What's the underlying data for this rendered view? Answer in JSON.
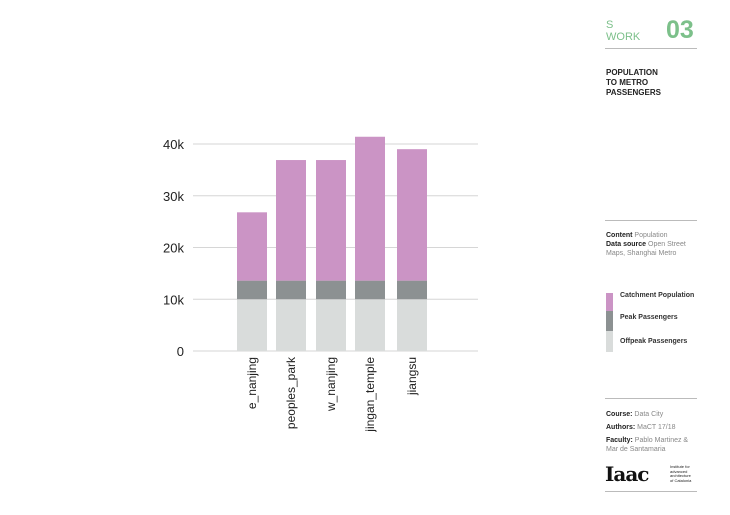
{
  "header": {
    "section_line1": "S",
    "section_line2": "WORK",
    "number": "03",
    "title_lines": [
      "POPULATION",
      "TO METRO",
      "PASSENGERS"
    ]
  },
  "info": {
    "content_label": "Content",
    "content_value": "Population",
    "source_label": "Data source",
    "source_value_1": "Open Street",
    "source_value_2": "Maps, Shanghai Metro"
  },
  "credits": {
    "course_label": "Course:",
    "course_value": "Data City",
    "authors_label": "Authors:",
    "authors_value": "MaCT 17/18",
    "faculty_label": "Faculty:",
    "faculty_value_1": "Pablo Martinez  &",
    "faculty_value_2": "Mar de Santamaria",
    "logo_text": "Iaac",
    "logo_caption": [
      "Institute for",
      "advanced",
      "architecture",
      "of Catalonia"
    ]
  },
  "colors": {
    "accent": "#7cc08a",
    "catchment": "#cb94c5",
    "peak": "#8c9192",
    "offpeak": "#d9dcdb"
  },
  "chart_data": {
    "type": "bar",
    "stacked": true,
    "categories": [
      "e_nanjing",
      "peoples_park",
      "w_nanjing",
      "jingan_temple",
      "jiangsu"
    ],
    "series": [
      {
        "name": "Offpeak Passengers",
        "values": [
          10000,
          10000,
          10000,
          10000,
          10000
        ],
        "color": "#d9dcdb"
      },
      {
        "name": "Peak Passengers",
        "values": [
          3600,
          3600,
          3600,
          3600,
          3600
        ],
        "color": "#8c9192"
      },
      {
        "name": "Catchment Population",
        "values": [
          13200,
          23300,
          23300,
          27800,
          25400
        ],
        "color": "#cb94c5"
      }
    ],
    "yticks": [
      "0",
      "10k",
      "20k",
      "30k",
      "40k"
    ],
    "ytick_values": [
      0,
      10000,
      20000,
      30000,
      40000
    ],
    "ylim": [
      0,
      40000
    ],
    "grid": true,
    "legend_order": [
      "Catchment Population",
      "Peak Passengers",
      "Offpeak Passengers"
    ],
    "legend_placement": "right"
  }
}
